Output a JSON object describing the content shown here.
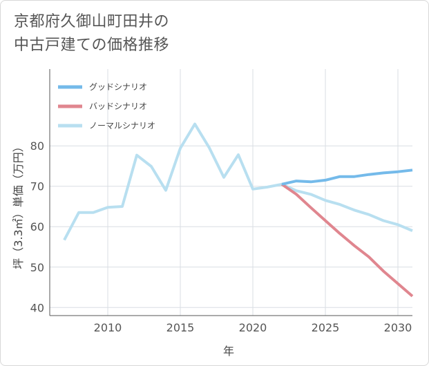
{
  "title_lines": [
    "京都府久御山町田井の",
    "中古戸建ての価格推移"
  ],
  "chart_data": {
    "type": "line",
    "title": "京都府久御山町田井の中古戸建ての価格推移",
    "xlabel": "年",
    "ylabel": "坪（3.3㎡）単価（万円）",
    "xlim": [
      2006,
      2031
    ],
    "ylim": [
      38,
      99
    ],
    "xticks": [
      2010,
      2015,
      2020,
      2025,
      2030
    ],
    "yticks": [
      40,
      50,
      60,
      70,
      80
    ],
    "legend_position": "top-left",
    "series": [
      {
        "name": "グッドシナリオ",
        "color": "#74baea",
        "x": [
          2022,
          2023,
          2024,
          2025,
          2026,
          2027,
          2028,
          2029,
          2030,
          2031
        ],
        "values": [
          70.5,
          71.3,
          71.1,
          71.5,
          72.4,
          72.4,
          72.9,
          73.3,
          73.6,
          74.0
        ]
      },
      {
        "name": "バッドシナリオ",
        "color": "#e0868f",
        "x": [
          2022,
          2023,
          2024,
          2025,
          2026,
          2027,
          2028,
          2029,
          2030,
          2031
        ],
        "values": [
          70.5,
          68.0,
          64.7,
          61.5,
          58.3,
          55.3,
          52.5,
          49.0,
          45.9,
          42.8
        ]
      },
      {
        "name": "ノーマルシナリオ",
        "color": "#b8dff0",
        "x": [
          2007,
          2008,
          2009,
          2010,
          2011,
          2012,
          2013,
          2014,
          2015,
          2016,
          2017,
          2018,
          2019,
          2020,
          2021,
          2022,
          2023,
          2024,
          2025,
          2026,
          2027,
          2028,
          2029,
          2030,
          2031
        ],
        "values": [
          56.7,
          63.5,
          63.5,
          64.8,
          65.0,
          77.7,
          74.9,
          69.0,
          79.4,
          85.4,
          79.5,
          72.2,
          77.8,
          69.3,
          69.8,
          70.5,
          68.9,
          68.0,
          66.5,
          65.5,
          64.1,
          63.0,
          61.5,
          60.5,
          59.0
        ]
      }
    ]
  }
}
